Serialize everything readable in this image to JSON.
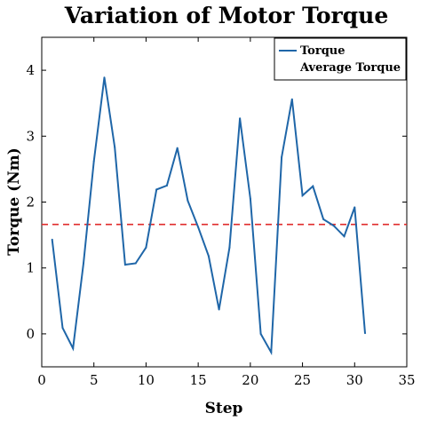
{
  "chart_data": {
    "type": "line",
    "title": "Variation of Motor Torque",
    "xlabel": "Step",
    "ylabel": "Torque  (Nm)",
    "xlim": [
      0,
      35
    ],
    "ylim": [
      -0.5,
      4.5
    ],
    "xticks": [
      0,
      5,
      10,
      15,
      20,
      25,
      30,
      35
    ],
    "yticks": [
      0,
      1,
      2,
      3,
      4
    ],
    "grid": false,
    "legend_position": "top-right",
    "series": [
      {
        "name": "Torque",
        "color": "#1f66a8",
        "style": "solid",
        "x": [
          1,
          2,
          3,
          4,
          5,
          6,
          7,
          8,
          9,
          10,
          11,
          12,
          13,
          14,
          15,
          16,
          17,
          18,
          19,
          20,
          21,
          22,
          23,
          24,
          25,
          26,
          27,
          28,
          29,
          30,
          31
        ],
        "y": [
          1.43,
          0.09,
          -0.22,
          1.07,
          2.62,
          3.89,
          2.83,
          1.05,
          1.07,
          1.31,
          2.19,
          2.25,
          2.82,
          2.02,
          1.62,
          1.18,
          0.37,
          1.31,
          3.27,
          2.05,
          0.0,
          -0.28,
          2.68,
          3.56,
          2.1,
          2.24,
          1.74,
          1.64,
          1.48,
          1.92,
          0.01
        ]
      },
      {
        "name": "Average Torque",
        "color": "#e02b2b",
        "style": "dashed",
        "x": [
          0,
          35
        ],
        "y": [
          1.66,
          1.66
        ]
      }
    ]
  }
}
